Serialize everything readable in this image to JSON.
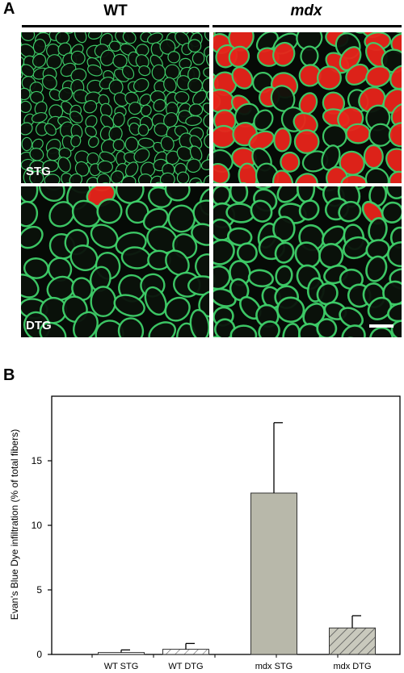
{
  "panel_a": {
    "letter": "A",
    "columns": [
      {
        "label": "WT",
        "italic": false
      },
      {
        "label": "mdx",
        "italic": true
      }
    ],
    "rows": [
      {
        "label": "STG"
      },
      {
        "label": "DTG"
      }
    ],
    "colors": {
      "membrane": "#3fd06a",
      "dye": "#e8241b",
      "background": "#060a06"
    }
  },
  "panel_b": {
    "letter": "B"
  },
  "chart_data": {
    "type": "bar",
    "title": "",
    "xlabel": "",
    "ylabel": "Evan's Blue Dye infiltration (% of total fibers)",
    "categories": [
      "WT STG",
      "WT DTG",
      "mdx STG",
      "mdx DTG"
    ],
    "values": [
      0.15,
      0.4,
      12.5,
      2.05
    ],
    "errors": [
      0.2,
      0.45,
      5.45,
      0.95
    ],
    "ylim": [
      0,
      20
    ],
    "yticks": [
      0,
      5,
      10,
      15
    ],
    "fills": [
      "white",
      "hatch-light",
      "gray",
      "hatch-dark"
    ],
    "colors": {
      "gray": "#b8b8aa",
      "hatch": "#555555"
    },
    "grid": false,
    "legend": "none"
  }
}
